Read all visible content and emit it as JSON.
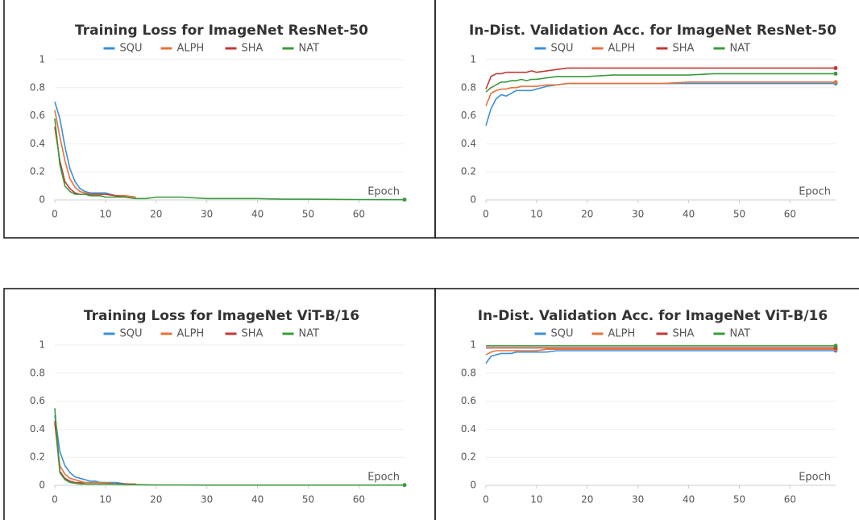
{
  "chart_data": [
    {
      "type": "line",
      "title": "Training Loss for ImageNet ResNet-50",
      "x_label": "Epoch",
      "x": [
        0,
        1,
        2,
        3,
        4,
        5,
        6,
        7,
        8,
        9,
        10,
        12,
        14,
        16,
        18,
        20,
        25,
        30,
        35,
        40,
        45,
        50,
        60,
        69
      ],
      "xlim": [
        0,
        69
      ],
      "ylim": [
        0,
        1
      ],
      "xticks": [
        0,
        10,
        20,
        30,
        40,
        50,
        60
      ],
      "yticks": [
        0,
        0.2,
        0.4,
        0.6,
        0.8,
        1
      ],
      "grid": true,
      "series": [
        {
          "name": "SQU",
          "color": "#3b8fd6",
          "values": [
            0.7,
            0.58,
            0.38,
            0.22,
            0.13,
            0.08,
            0.06,
            0.05,
            0.05,
            0.05,
            0.05,
            0.03,
            0.02,
            0.01,
            null,
            null,
            null,
            null,
            null,
            null,
            null,
            null,
            null,
            null
          ]
        },
        {
          "name": "ALPH",
          "color": "#e5733a",
          "values": [
            0.64,
            0.45,
            0.28,
            0.15,
            0.09,
            0.06,
            0.05,
            0.04,
            0.04,
            0.04,
            0.04,
            0.03,
            0.03,
            0.02,
            null,
            null,
            null,
            null,
            null,
            null,
            null,
            null,
            null,
            null
          ]
        },
        {
          "name": "SHA",
          "color": "#bf3b35",
          "values": [
            0.52,
            0.28,
            0.13,
            0.08,
            0.05,
            0.04,
            0.04,
            0.04,
            0.04,
            0.04,
            0.04,
            0.03,
            0.02,
            0.01,
            null,
            null,
            null,
            null,
            null,
            null,
            null,
            null,
            null,
            null
          ]
        },
        {
          "name": "NAT",
          "color": "#3a9a3d",
          "values": [
            0.58,
            0.25,
            0.1,
            0.06,
            0.04,
            0.04,
            0.04,
            0.03,
            0.03,
            0.03,
            0.02,
            0.02,
            0.02,
            0.01,
            0.01,
            0.02,
            0.02,
            0.01,
            0.01,
            0.01,
            0.005,
            0.005,
            0.003,
            0.002
          ]
        }
      ]
    },
    {
      "type": "line",
      "title": "In-Dist. Validation Acc. for ImageNet ResNet-50",
      "x_label": "Epoch",
      "x": [
        0,
        1,
        2,
        3,
        4,
        5,
        6,
        7,
        8,
        9,
        10,
        12,
        14,
        16,
        18,
        20,
        25,
        30,
        35,
        40,
        45,
        50,
        60,
        69
      ],
      "xlim": [
        0,
        69
      ],
      "ylim": [
        0,
        1
      ],
      "xticks": [
        0,
        10,
        20,
        30,
        40,
        50,
        60
      ],
      "yticks": [
        0,
        0.2,
        0.4,
        0.6,
        0.8,
        1
      ],
      "grid": true,
      "series": [
        {
          "name": "SQU",
          "color": "#3b8fd6",
          "values": [
            0.53,
            0.65,
            0.72,
            0.75,
            0.74,
            0.76,
            0.78,
            0.78,
            0.78,
            0.78,
            0.79,
            0.81,
            0.82,
            0.83,
            0.83,
            0.83,
            0.83,
            0.83,
            0.83,
            0.83,
            0.83,
            0.83,
            0.83,
            0.83
          ]
        },
        {
          "name": "ALPH",
          "color": "#e5733a",
          "values": [
            0.67,
            0.76,
            0.78,
            0.79,
            0.79,
            0.8,
            0.8,
            0.81,
            0.81,
            0.81,
            0.81,
            0.82,
            0.82,
            0.83,
            0.83,
            0.83,
            0.83,
            0.83,
            0.83,
            0.84,
            0.84,
            0.84,
            0.84,
            0.84
          ]
        },
        {
          "name": "SHA",
          "color": "#bf3b35",
          "values": [
            0.79,
            0.88,
            0.9,
            0.9,
            0.91,
            0.91,
            0.91,
            0.91,
            0.91,
            0.92,
            0.91,
            0.92,
            0.93,
            0.94,
            0.94,
            0.94,
            0.94,
            0.94,
            0.94,
            0.94,
            0.94,
            0.94,
            0.94,
            0.94
          ]
        },
        {
          "name": "NAT",
          "color": "#3a9a3d",
          "values": [
            0.77,
            0.8,
            0.82,
            0.84,
            0.84,
            0.85,
            0.85,
            0.86,
            0.85,
            0.86,
            0.86,
            0.87,
            0.88,
            0.88,
            0.88,
            0.88,
            0.89,
            0.89,
            0.89,
            0.89,
            0.9,
            0.9,
            0.9,
            0.9
          ]
        }
      ]
    },
    {
      "type": "line",
      "title": "Training Loss for ImageNet ViT-B/16",
      "x_label": "Epoch",
      "x": [
        0,
        1,
        2,
        3,
        4,
        5,
        6,
        7,
        8,
        9,
        10,
        12,
        14,
        16,
        18,
        20,
        25,
        30,
        35,
        40,
        45,
        50,
        60,
        69
      ],
      "xlim": [
        0,
        69
      ],
      "ylim": [
        0,
        1
      ],
      "xticks": [
        0,
        10,
        20,
        30,
        40,
        50,
        60
      ],
      "yticks": [
        0,
        0.2,
        0.4,
        0.6,
        0.8,
        1
      ],
      "grid": true,
      "series": [
        {
          "name": "SQU",
          "color": "#3b8fd6",
          "values": [
            0.5,
            0.24,
            0.14,
            0.09,
            0.06,
            0.05,
            0.04,
            0.03,
            0.03,
            0.02,
            0.02,
            0.02,
            0.01,
            0.01,
            null,
            null,
            null,
            null,
            null,
            null,
            null,
            null,
            null,
            null
          ]
        },
        {
          "name": "ALPH",
          "color": "#e5733a",
          "values": [
            0.44,
            0.14,
            0.08,
            0.05,
            0.04,
            0.03,
            0.02,
            0.02,
            0.02,
            0.02,
            0.02,
            0.01,
            0.01,
            0.01,
            null,
            null,
            null,
            null,
            null,
            null,
            null,
            null,
            null,
            null
          ]
        },
        {
          "name": "SHA",
          "color": "#bf3b35",
          "values": [
            0.46,
            0.1,
            0.05,
            0.03,
            0.02,
            0.02,
            0.01,
            0.01,
            0.01,
            0.01,
            0.01,
            0.01,
            0.01,
            0.005,
            null,
            null,
            null,
            null,
            null,
            null,
            null,
            null,
            null,
            null
          ]
        },
        {
          "name": "NAT",
          "color": "#3a9a3d",
          "values": [
            0.55,
            0.09,
            0.04,
            0.02,
            0.015,
            0.01,
            0.01,
            0.01,
            0.01,
            0.01,
            0.01,
            0.008,
            0.006,
            0.005,
            0.004,
            0.003,
            0.003,
            0.002,
            0.002,
            0.002,
            0.002,
            0.002,
            0.002,
            0.002
          ]
        }
      ]
    },
    {
      "type": "line",
      "title": "In-Dist. Validation Acc. for ImageNet ViT-B/16",
      "x_label": "Epoch",
      "x": [
        0,
        1,
        2,
        3,
        4,
        5,
        6,
        7,
        8,
        9,
        10,
        12,
        14,
        16,
        18,
        20,
        25,
        30,
        35,
        40,
        45,
        50,
        60,
        69
      ],
      "xlim": [
        0,
        69
      ],
      "ylim": [
        0,
        1
      ],
      "xticks": [
        0,
        10,
        20,
        30,
        40,
        50,
        60
      ],
      "yticks": [
        0,
        0.2,
        0.4,
        0.6,
        0.8,
        1
      ],
      "grid": true,
      "series": [
        {
          "name": "SQU",
          "color": "#3b8fd6",
          "values": [
            0.87,
            0.92,
            0.93,
            0.94,
            0.94,
            0.94,
            0.95,
            0.95,
            0.95,
            0.95,
            0.95,
            0.95,
            0.96,
            0.96,
            0.96,
            0.96,
            0.96,
            0.96,
            0.96,
            0.96,
            0.96,
            0.96,
            0.96,
            0.96
          ]
        },
        {
          "name": "ALPH",
          "color": "#e5733a",
          "values": [
            0.93,
            0.95,
            0.96,
            0.96,
            0.96,
            0.96,
            0.96,
            0.96,
            0.96,
            0.96,
            0.96,
            0.97,
            0.97,
            0.97,
            0.97,
            0.97,
            0.97,
            0.97,
            0.97,
            0.97,
            0.97,
            0.97,
            0.97,
            0.97
          ]
        },
        {
          "name": "SHA",
          "color": "#bf3b35",
          "values": [
            0.98,
            0.98,
            0.98,
            0.98,
            0.98,
            0.98,
            0.98,
            0.98,
            0.98,
            0.98,
            0.98,
            0.98,
            0.98,
            0.98,
            0.98,
            0.98,
            0.98,
            0.98,
            0.98,
            0.98,
            0.98,
            0.98,
            0.98,
            0.98
          ]
        },
        {
          "name": "NAT",
          "color": "#3a9a3d",
          "values": [
            0.995,
            0.995,
            0.995,
            0.995,
            0.995,
            0.995,
            0.995,
            0.995,
            0.995,
            0.995,
            0.995,
            0.995,
            0.995,
            0.995,
            0.995,
            0.995,
            0.995,
            0.995,
            0.995,
            0.995,
            0.995,
            0.995,
            0.995,
            0.995
          ]
        }
      ]
    }
  ]
}
